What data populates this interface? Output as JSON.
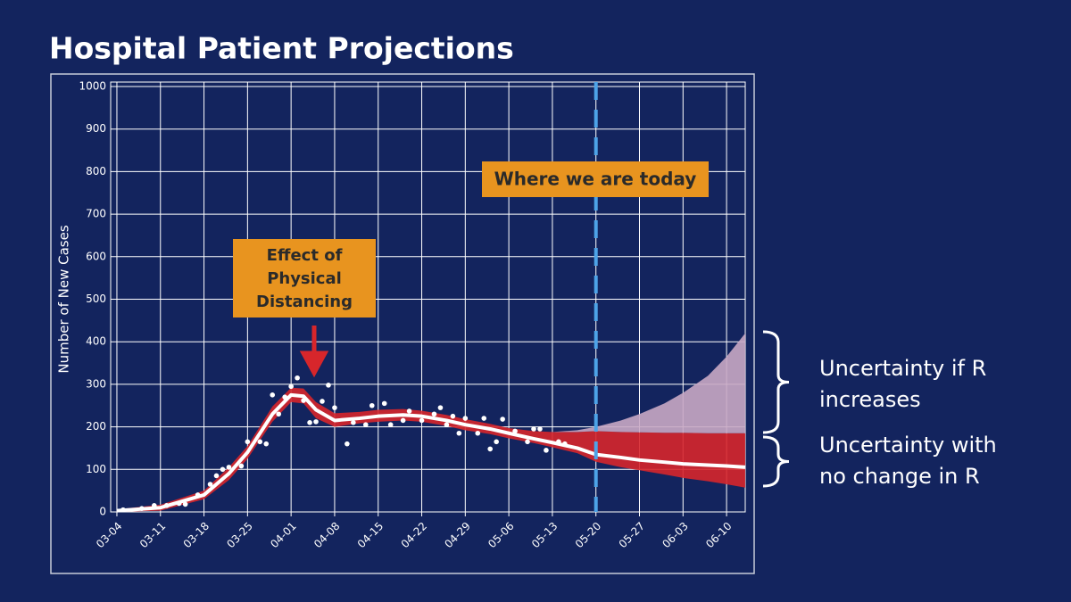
{
  "title": "Hospital Patient Projections",
  "chart_data": {
    "type": "line",
    "ylabel": "Number of New Cases",
    "x": [
      "03-04",
      "03-11",
      "03-18",
      "03-22",
      "03-25",
      "03-29",
      "04-01",
      "04-03",
      "04-05",
      "04-08",
      "04-12",
      "04-15",
      "04-19",
      "04-22",
      "04-26",
      "04-29",
      "05-03",
      "05-06",
      "05-10",
      "05-13",
      "05-17",
      "05-20",
      "05-24",
      "05-27",
      "05-31",
      "06-03",
      "06-07",
      "06-10",
      "06-13"
    ],
    "series": [
      {
        "color": "#ffffff",
        "values": [
          3,
          10,
          40,
          90,
          140,
          230,
          275,
          272,
          240,
          215,
          220,
          225,
          228,
          225,
          215,
          205,
          195,
          185,
          172,
          163,
          150,
          135,
          128,
          122,
          117,
          113,
          110,
          108,
          105
        ]
      }
    ],
    "bands": [
      {
        "color": "#d7262b",
        "low": [
          0,
          3,
          30,
          75,
          125,
          212,
          258,
          255,
          220,
          200,
          208,
          212,
          215,
          212,
          202,
          192,
          183,
          173,
          162,
          152,
          138,
          118,
          105,
          98,
          88,
          80,
          72,
          65,
          57
        ],
        "high": [
          6,
          17,
          50,
          105,
          155,
          248,
          292,
          290,
          258,
          232,
          235,
          240,
          242,
          238,
          228,
          218,
          207,
          197,
          190,
          188,
          188,
          190,
          188,
          187,
          186,
          186,
          185,
          185,
          185
        ]
      },
      {
        "color": "#c9a8c4",
        "low": [
          null,
          null,
          null,
          null,
          null,
          null,
          null,
          null,
          null,
          null,
          null,
          null,
          null,
          null,
          null,
          null,
          null,
          null,
          null,
          188,
          188,
          190,
          188,
          187,
          186,
          186,
          185,
          185,
          185
        ],
        "high": [
          null,
          null,
          null,
          null,
          null,
          null,
          null,
          null,
          null,
          null,
          null,
          null,
          null,
          null,
          null,
          null,
          null,
          null,
          null,
          188,
          192,
          200,
          215,
          230,
          255,
          280,
          320,
          365,
          420
        ]
      }
    ],
    "points": {
      "color": "#ffffff",
      "x": [
        "03-05",
        "03-08",
        "03-10",
        "03-12",
        "03-14",
        "03-15",
        "03-17",
        "03-19",
        "03-20",
        "03-21",
        "03-22",
        "03-24",
        "03-25",
        "03-27",
        "03-28",
        "03-29",
        "03-30",
        "03-31",
        "04-01",
        "04-02",
        "04-03",
        "04-04",
        "04-05",
        "04-06",
        "04-07",
        "04-08",
        "04-10",
        "04-11",
        "04-13",
        "04-14",
        "04-16",
        "04-17",
        "04-19",
        "04-20",
        "04-22",
        "04-24",
        "04-25",
        "04-26",
        "04-27",
        "04-28",
        "04-29",
        "05-01",
        "05-02",
        "05-03",
        "05-04",
        "05-05",
        "05-07",
        "05-09",
        "05-10",
        "05-11",
        "05-12",
        "05-14",
        "05-15"
      ],
      "values": [
        5,
        8,
        15,
        15,
        20,
        18,
        40,
        65,
        85,
        100,
        105,
        108,
        165,
        165,
        160,
        275,
        230,
        270,
        295,
        315,
        262,
        210,
        212,
        260,
        298,
        245,
        160,
        210,
        205,
        250,
        255,
        205,
        215,
        237,
        215,
        230,
        245,
        205,
        225,
        185,
        220,
        185,
        220,
        148,
        165,
        218,
        190,
        165,
        195,
        195,
        145,
        165,
        160
      ]
    },
    "today": "05-20",
    "xlim": [
      "03-03",
      "06-13"
    ],
    "xticks": [
      "03-04",
      "03-11",
      "03-18",
      "03-25",
      "04-01",
      "04-08",
      "04-15",
      "04-22",
      "04-29",
      "05-06",
      "05-13",
      "05-20",
      "05-27",
      "06-03",
      "06-10"
    ],
    "ylim": [
      0,
      1000
    ],
    "yticks": [
      0,
      100,
      200,
      300,
      400,
      500,
      600,
      700,
      800,
      900,
      1000
    ],
    "grid": true,
    "annotations": {
      "today_label": "Where we are today",
      "distancing_label": [
        "Effect of",
        "Physical",
        "Distancing"
      ],
      "r_increases": [
        "Uncertainty if R",
        "increases"
      ],
      "r_unchanged": [
        "Uncertainty with",
        "no change in R"
      ]
    }
  }
}
